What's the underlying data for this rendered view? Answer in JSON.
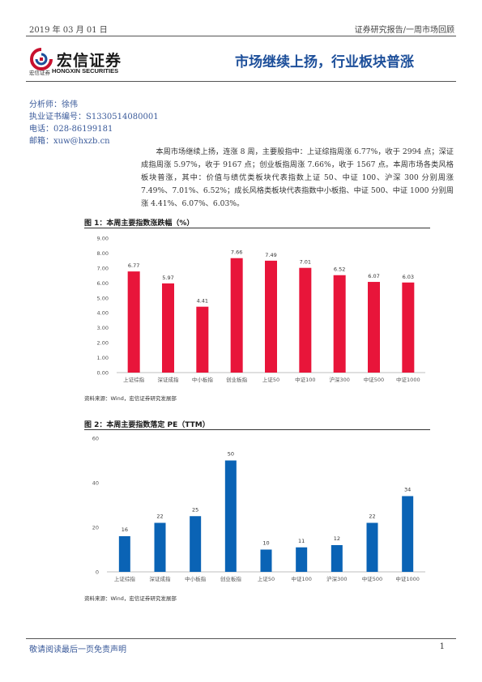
{
  "header": {
    "date": "2019 年 03 月 01 日",
    "right": "证券研究报告/一周市场回顾"
  },
  "logo": {
    "name": "宏信证券",
    "sub_cn": "宏信证券",
    "sub_en": "HONGXIN SECURITIES",
    "mark": "hongxin-logo-icon"
  },
  "title": "市场继续上扬，行业板块普涨",
  "analyst": {
    "name_line": "分析师：徐伟",
    "cert_line": "执业证书编号：S1330514080001",
    "phone_line": "电话：028-86199181",
    "email_line": "邮箱：xuw@hxzb.cn"
  },
  "summary": "本周市场继续上扬，连涨 8 周，主要股指中：上证综指周涨 6.77%，收于 2994 点；深证成指周涨 5.97%，收于 9167 点；创业板指周涨 7.66%，收于 1567 点。本周市场各类风格板块普涨，其中：价值与绩优类板块代表指数上证 50、中证 100、沪深 300 分别周涨 7.49%、7.01%、6.52%；成长风格类板块代表指数中小板指、中证 500、中证 1000 分别周涨 4.41%、6.07%、6.03%。",
  "figure1": {
    "title": "图 1：本周主要指数涨跌幅（%）",
    "source": "资料来源：Wind，宏信证券研究发展部"
  },
  "figure2": {
    "title": "图 2：本周主要指数落定 PE（TTM）",
    "source": "资料来源：Wind，宏信证券研究发展部"
  },
  "footer": {
    "disclaimer": "敬请阅读最后一页免责声明",
    "page": "1"
  },
  "chart_data": [
    {
      "type": "bar",
      "categories": [
        "上证综指",
        "深证成指",
        "中小板指",
        "创业板指",
        "上证50",
        "中证100",
        "沪深300",
        "中证500",
        "中证1000"
      ],
      "values": [
        6.77,
        5.97,
        4.41,
        7.66,
        7.49,
        7.01,
        6.52,
        6.07,
        6.03
      ],
      "value_labels": [
        "6.77",
        "5.97",
        "4.41",
        "7.66",
        "7.49",
        "7.01",
        "6.52",
        "6.07",
        "6.03"
      ],
      "yticks": [
        "0.00",
        "1.00",
        "2.00",
        "3.00",
        "4.00",
        "5.00",
        "6.00",
        "7.00",
        "8.00",
        "9.00"
      ],
      "ylim": [
        0,
        9
      ],
      "title": "本周主要指数涨跌幅（%）",
      "color": "#e8153a",
      "grid": false
    },
    {
      "type": "bar",
      "categories": [
        "上证综指",
        "深证成指",
        "中小板指",
        "创业板指",
        "上证50",
        "中证100",
        "沪深300",
        "中证500",
        "中证1000"
      ],
      "values": [
        16,
        22,
        25,
        50,
        10,
        11,
        12,
        22,
        34
      ],
      "value_labels": [
        "16",
        "22",
        "25",
        "50",
        "10",
        "11",
        "12",
        "22",
        "34"
      ],
      "yticks": [
        "0",
        "20",
        "40",
        "60"
      ],
      "ylim": [
        0,
        60
      ],
      "title": "本周主要指数落定 PE（TTM）",
      "color": "#0a63b5",
      "grid": false
    }
  ]
}
